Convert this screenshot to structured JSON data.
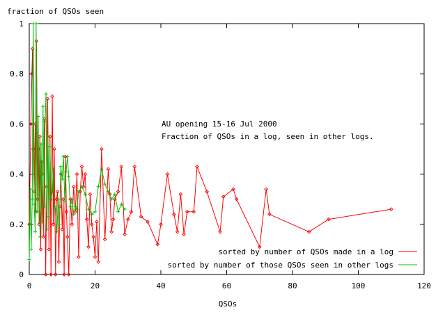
{
  "chart_data": {
    "type": "line",
    "ylabel": "fraction of QSOs seen",
    "xlabel": "QSOs",
    "xlim": [
      0,
      120
    ],
    "ylim": [
      0,
      1
    ],
    "xticks": [
      0,
      20,
      40,
      60,
      80,
      100,
      120
    ],
    "xtick_labels": [
      "0",
      "20",
      "40",
      "60",
      "80",
      "100",
      "120"
    ],
    "yticks": [
      0,
      0.2,
      0.4,
      0.6,
      0.8,
      1
    ],
    "ytick_labels": [
      "0",
      "0.2",
      "0.4",
      "0.6",
      "0.8",
      "1"
    ],
    "annotation": [
      "AU opening 15-16 Jul 2000",
      "Fraction of QSOs in a log, seen in other logs."
    ],
    "grid": false,
    "legend_position": "bottom-right",
    "series": [
      {
        "name": "sorted by number of QSOs made in a log",
        "color": "#ff0000",
        "marker": "diamond",
        "x": [
          0,
          0.5,
          0.8,
          1,
          1.2,
          1.5,
          1.8,
          2,
          2.2,
          2.5,
          2.8,
          3,
          3.2,
          3.5,
          3.8,
          4,
          4.3,
          4.6,
          5,
          5.3,
          5.6,
          6,
          6.3,
          6.6,
          7,
          7.3,
          7.6,
          8,
          8.3,
          8.6,
          9,
          9.3,
          9.6,
          10,
          10.3,
          10.6,
          11,
          11.3,
          11.6,
          12,
          12.5,
          13,
          13.5,
          14,
          14.5,
          15,
          15.5,
          16,
          16.5,
          17,
          17.5,
          18,
          18.5,
          19,
          19.5,
          20,
          20.5,
          21,
          22,
          23,
          24,
          24.5,
          25,
          25.5,
          26,
          27,
          28,
          29,
          30,
          31,
          32,
          34,
          36,
          39,
          40,
          42,
          44,
          45,
          46,
          47,
          48,
          50,
          51,
          54,
          58,
          59,
          62,
          63,
          70,
          72,
          73,
          85,
          91,
          110
        ],
        "values": [
          0.2,
          0.6,
          0.8,
          0.9,
          0.5,
          0.33,
          0.6,
          0.25,
          0.93,
          0.3,
          0.5,
          0.2,
          0.55,
          0.1,
          0.45,
          0.4,
          0.15,
          0.62,
          0,
          0.35,
          0.7,
          0.1,
          0.55,
          0,
          0.71,
          0.2,
          0.5,
          0,
          0.3,
          0.33,
          0.05,
          0.27,
          0.4,
          0.18,
          0.3,
          0,
          0.47,
          0.25,
          0.15,
          0,
          0.3,
          0.2,
          0.35,
          0.25,
          0.4,
          0.07,
          0.33,
          0.43,
          0.35,
          0.4,
          0.22,
          0.11,
          0.32,
          0.2,
          0.15,
          0.07,
          0.21,
          0.05,
          0.5,
          0.14,
          0.42,
          0.32,
          0.17,
          0.22,
          0.3,
          0.33,
          0.43,
          0.16,
          0.22,
          0.25,
          0.43,
          0.23,
          0.21,
          0.12,
          0.2,
          0.4,
          0.24,
          0.17,
          0.32,
          0.16,
          0.25,
          0.25,
          0.43,
          0.33,
          0.17,
          0.31,
          0.34,
          0.3,
          0.11,
          0.34,
          0.24,
          0.17,
          0.22,
          0.26
        ]
      },
      {
        "name": "sorted by number of those QSOs seen in other logs",
        "color": "#00c000",
        "marker": "plus",
        "x": [
          0,
          0.3,
          0.6,
          0.9,
          1.2,
          1.5,
          1.8,
          2.1,
          2.4,
          2.7,
          3,
          3.3,
          3.6,
          3.9,
          4.2,
          4.5,
          4.8,
          5.1,
          5.4,
          5.7,
          6,
          6.3,
          6.6,
          7,
          7.3,
          7.6,
          8,
          8.4,
          8.8,
          9.2,
          9.6,
          10,
          10.4,
          10.8,
          11.2,
          11.6,
          12,
          12.5,
          13,
          13.5,
          14,
          14.5,
          15,
          16,
          17,
          18,
          19,
          20,
          21,
          22,
          23,
          24,
          25,
          26,
          27,
          28,
          29
        ],
        "values": [
          0.06,
          0.34,
          0.1,
          0.3,
          1,
          0.28,
          0.17,
          1,
          0.25,
          0.63,
          0.32,
          0.15,
          0.52,
          0.21,
          0.67,
          0.27,
          0.61,
          0.72,
          0.18,
          0.55,
          0.23,
          0.51,
          0.3,
          0.33,
          0.42,
          0.27,
          0.26,
          0.17,
          0.3,
          0.2,
          0.43,
          0.38,
          0.47,
          0.29,
          0.41,
          0.47,
          0.39,
          0.27,
          0.3,
          0.24,
          0.27,
          0.26,
          0.33,
          0.35,
          0.32,
          0.26,
          0.24,
          0.25,
          0.35,
          0.42,
          0.36,
          0.33,
          0.3,
          0.32,
          0.25,
          0.28,
          0.26
        ]
      }
    ]
  }
}
